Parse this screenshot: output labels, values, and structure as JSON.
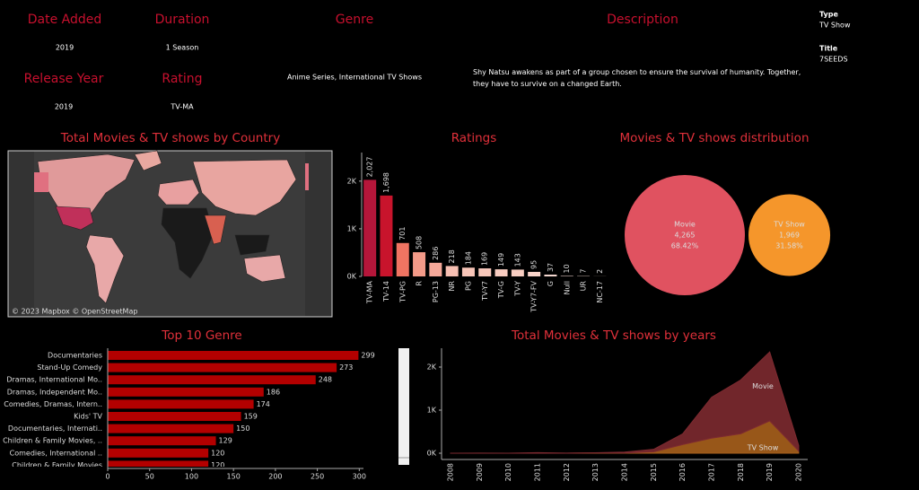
{
  "details": {
    "date_added": {
      "label": "Date Added",
      "value": "2019"
    },
    "duration": {
      "label": "Duration",
      "value": "1 Season"
    },
    "genre": {
      "label": "Genre",
      "value": "Anime Series, International TV Shows"
    },
    "description": {
      "label": "Description",
      "value": "Shy Natsu awakens as part of a group chosen to ensure the survival of humanity. Together, they have to survive on a changed Earth."
    },
    "release_year": {
      "label": "Release Year",
      "value": "2019"
    },
    "rating": {
      "label": "Rating",
      "value": "TV-MA"
    },
    "type": {
      "label": "Type",
      "value": "TV Show"
    },
    "title": {
      "label": "Title",
      "value": "7SEEDS"
    }
  },
  "chart_data": [
    {
      "type": "map",
      "title": "Total Movies  & TV shows by Country",
      "attribution": "© 2023 Mapbox © OpenStreetMap"
    },
    {
      "type": "bar",
      "title": "Ratings",
      "categories": [
        "TV-MA",
        "TV-14",
        "TV-PG",
        "R",
        "PG-13",
        "NR",
        "PG",
        "TV-Y7",
        "TV-G",
        "TV-Y",
        "TV-Y7-FV",
        "G",
        "Null",
        "UR",
        "NC-17"
      ],
      "values": [
        2027,
        1698,
        701,
        508,
        286,
        218,
        184,
        169,
        149,
        143,
        95,
        37,
        10,
        7,
        2
      ],
      "value_labels": [
        "2,027",
        "1,698",
        "701",
        "508",
        "286",
        "218",
        "184",
        "169",
        "149",
        "143",
        "95",
        "37",
        "10",
        "7",
        "2"
      ],
      "colors": [
        "#b5163a",
        "#c8142c",
        "#f07462",
        "#f39a88",
        "#f5a899",
        "#f7bfb2",
        "#f7c4b7",
        "#f8c8bb",
        "#f8ccc0",
        "#f8cdc1",
        "#f9d4ca",
        "#f9dbd3",
        "#fadfd8",
        "#fae0d9",
        "#fae1da"
      ],
      "ylim": [
        0,
        2600
      ],
      "yticks": [
        {
          "value": 0,
          "label": "0K"
        },
        {
          "value": 1000,
          "label": "1K"
        },
        {
          "value": 2000,
          "label": "2K"
        }
      ]
    },
    {
      "type": "packed-bubble",
      "title": "Movies & TV shows distribution",
      "categories": [
        "Movie",
        "TV Show"
      ],
      "values": [
        4265,
        1969
      ],
      "value_labels": [
        "4,265",
        "1,969"
      ],
      "percents": [
        68.42,
        31.58
      ],
      "percent_labels": [
        "68.42%",
        "31.58%"
      ],
      "colors": [
        "#e05260",
        "#f5962b"
      ]
    },
    {
      "type": "hbar",
      "title": "Top 10 Genre",
      "categories": [
        "Documentaries",
        "Stand-Up Comedy",
        "Dramas, International Mo..",
        "Dramas, Independent Mo..",
        "Comedies, Dramas, Intern..",
        "Kids' TV",
        "Documentaries, Internati..",
        "Children & Family Movies, ..",
        "Comedies, International ..",
        "Children & Family Movies"
      ],
      "values": [
        299,
        273,
        248,
        186,
        174,
        159,
        150,
        129,
        120,
        120
      ],
      "color": "#b30000",
      "xlim": [
        0,
        305
      ],
      "xticks": [
        0,
        50,
        100,
        150,
        200,
        250,
        300
      ]
    },
    {
      "type": "stacked-area",
      "title": "Total Movies  & TV shows by years",
      "categories": [
        "2008",
        "2009",
        "2010",
        "2011",
        "2012",
        "2013",
        "2014",
        "2015",
        "2016",
        "2017",
        "2018",
        "2019",
        "2020"
      ],
      "series": [
        {
          "name": "TV Show",
          "color": "#a8611c",
          "values": [
            0,
            0,
            0,
            0,
            0,
            5,
            6,
            30,
            200,
            350,
            450,
            750,
            50
          ]
        },
        {
          "name": "Movie",
          "color": "#7d2a30",
          "values": [
            1,
            2,
            1,
            13,
            3,
            6,
            19,
            60,
            250,
            950,
            1250,
            1600,
            130
          ]
        }
      ],
      "ylim": [
        0,
        2500
      ],
      "yticks": [
        {
          "value": 0,
          "label": "0K"
        },
        {
          "value": 1000,
          "label": "1K"
        },
        {
          "value": 2000,
          "label": "2K"
        }
      ]
    }
  ]
}
